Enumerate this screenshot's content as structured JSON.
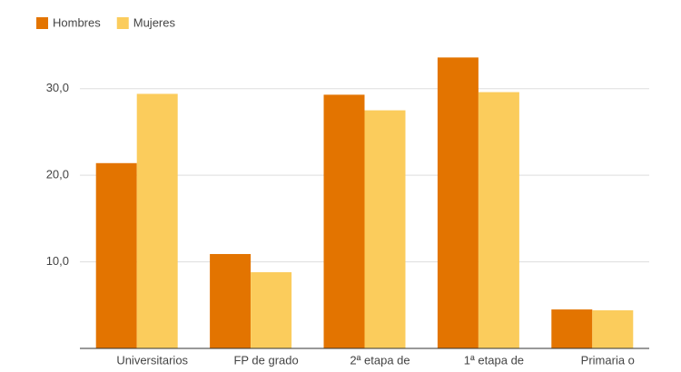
{
  "chart_data": {
    "type": "bar",
    "categories": [
      "Universitarios",
      "FP de grado",
      "2ª etapa de",
      "1ª etapa de",
      "Primaria o"
    ],
    "series": [
      {
        "name": "Hombres",
        "color": "#e37400",
        "values": [
          21.4,
          10.9,
          29.3,
          33.6,
          4.5
        ]
      },
      {
        "name": "Mujeres",
        "color": "#fbcc5c",
        "values": [
          29.4,
          8.8,
          27.5,
          29.6,
          4.4
        ]
      }
    ],
    "ylim": [
      0,
      35
    ],
    "yticks": [
      {
        "value": 10,
        "label": "10,0"
      },
      {
        "value": 20,
        "label": "20,0"
      },
      {
        "value": 30,
        "label": "30,0"
      }
    ],
    "grid": true,
    "legend": "top-left"
  }
}
